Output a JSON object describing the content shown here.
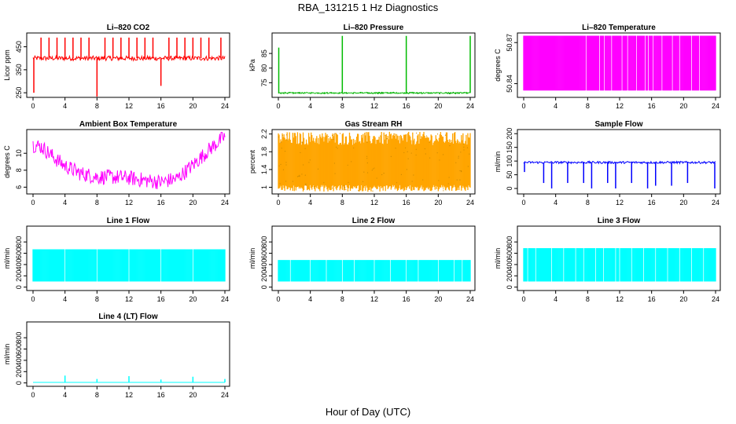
{
  "figure": {
    "title": "RBA_131215  1 Hz Diagnostics",
    "xlabel": "Hour of Day (UTC)"
  },
  "chart_data": [
    {
      "id": "co2",
      "type": "line",
      "title": "Li–820 CO2",
      "ylabel": "Licor ppm",
      "color": "#ff0000",
      "xlim": [
        0,
        24
      ],
      "ylim": [
        230,
        510
      ],
      "x_ticks": [
        0,
        4,
        8,
        12,
        16,
        20,
        24
      ],
      "y_ticks": [
        250,
        350,
        450
      ],
      "pattern": {
        "baseline": 400,
        "noise": 10,
        "spikes_up_at": [
          1.0,
          2.0,
          3.0,
          4.0,
          5.0,
          6.0,
          7.0,
          9.0,
          10.0,
          11.0,
          12.0,
          13.0,
          14.0,
          15.0,
          17.0,
          18.0,
          19.0,
          20.0,
          21.0,
          22.0,
          23.5
        ],
        "spike_up_to": 490,
        "spikes_down": [
          [
            0.1,
            250
          ],
          [
            8.0,
            230
          ],
          [
            16.0,
            280
          ]
        ]
      }
    },
    {
      "id": "pressure",
      "type": "line",
      "title": "Li–820 Pressure",
      "ylabel": "kPa",
      "color": "#00bb00",
      "xlim": [
        0,
        24
      ],
      "ylim": [
        70,
        92
      ],
      "x_ticks": [
        0,
        4,
        8,
        12,
        16,
        20,
        24
      ],
      "y_ticks": [
        75,
        80,
        85
      ],
      "pattern": {
        "baseline": 71.5,
        "noise": 0.2,
        "spikes_up": [
          [
            0.05,
            87
          ],
          [
            8.0,
            91
          ],
          [
            16.0,
            91
          ],
          [
            24.0,
            91
          ]
        ]
      }
    },
    {
      "id": "licor_temp",
      "type": "area",
      "title": "Li–820 Temperature",
      "ylabel": "degrees C",
      "color": "#ff00ff",
      "xlim": [
        0,
        24
      ],
      "ylim": [
        50.83,
        50.877
      ],
      "x_ticks": [
        0,
        4,
        8,
        12,
        16,
        20,
        24
      ],
      "y_ticks": [
        50.84,
        50.87
      ],
      "pattern": {
        "low": 50.835,
        "high": 50.875,
        "gaps": [
          7.8,
          9.5,
          10.1,
          11.0,
          12.3,
          13.0,
          14.1,
          15.2,
          15.6,
          16.2,
          17.3,
          18.6,
          19.5,
          21.0,
          22.0
        ]
      }
    },
    {
      "id": "box_temp",
      "type": "line",
      "title": "Ambient Box Temperature",
      "ylabel": "degrees C",
      "color": "#ff00ff",
      "xlim": [
        0,
        24
      ],
      "ylim": [
        5.2,
        12.8
      ],
      "x_ticks": [
        0,
        4,
        8,
        12,
        16,
        20,
        24
      ],
      "y_ticks": [
        6,
        8,
        10
      ],
      "profile": [
        [
          0,
          11.0
        ],
        [
          1,
          10.8
        ],
        [
          2,
          10.0
        ],
        [
          3,
          9.2
        ],
        [
          4,
          8.5
        ],
        [
          6,
          7.6
        ],
        [
          8,
          7.2
        ],
        [
          10,
          7.2
        ],
        [
          12,
          7.1
        ],
        [
          14,
          6.8
        ],
        [
          16,
          6.6
        ],
        [
          18,
          7.0
        ],
        [
          20,
          8.6
        ],
        [
          22,
          10.4
        ],
        [
          24,
          12.0
        ]
      ],
      "noise": 0.9
    },
    {
      "id": "rh",
      "type": "area",
      "title": "Gas Stream RH",
      "ylabel": "percent",
      "color": "#ffa500",
      "xlim": [
        0,
        24
      ],
      "ylim": [
        0.85,
        2.3
      ],
      "x_ticks": [
        0,
        4,
        8,
        12,
        16,
        20,
        24
      ],
      "y_ticks": [
        1.0,
        1.4,
        1.8,
        2.2
      ],
      "pattern": {
        "low": 1.05,
        "high": 1.95,
        "min": 0.9,
        "max": 2.25
      }
    },
    {
      "id": "sample_flow",
      "type": "line",
      "title": "Sample Flow",
      "ylabel": "ml/min",
      "color": "#0000ff",
      "xlim": [
        0,
        24
      ],
      "ylim": [
        -20,
        215
      ],
      "x_ticks": [
        0,
        4,
        8,
        12,
        16,
        20,
        24
      ],
      "y_ticks": [
        0,
        50,
        100,
        150,
        200
      ],
      "pattern": {
        "baseline": 95,
        "noise": 4,
        "dips": [
          [
            0.1,
            60
          ],
          [
            2.5,
            20
          ],
          [
            3.5,
            0
          ],
          [
            5.5,
            20
          ],
          [
            7.5,
            20
          ],
          [
            8.5,
            0
          ],
          [
            10.5,
            20
          ],
          [
            11.5,
            0
          ],
          [
            13.5,
            20
          ],
          [
            15.5,
            0
          ],
          [
            16.5,
            10
          ],
          [
            18.5,
            10
          ],
          [
            20.5,
            20
          ],
          [
            23.9,
            0
          ]
        ]
      }
    },
    {
      "id": "line1",
      "type": "area",
      "title": "Line 1 Flow",
      "ylabel": "ml/min",
      "color": "#00ffff",
      "xlim": [
        0,
        24
      ],
      "ylim": [
        -60,
        1080
      ],
      "x_ticks": [
        0,
        4,
        8,
        12,
        16,
        20,
        24
      ],
      "y_ticks": [
        0,
        200,
        400,
        600,
        800
      ],
      "pattern": {
        "low": 100,
        "high": 670,
        "gaps": [
          4.0,
          8.0,
          12.0,
          16.0,
          20.0
        ]
      }
    },
    {
      "id": "line2",
      "type": "area",
      "title": "Line 2 Flow",
      "ylabel": "ml/min",
      "color": "#00ffff",
      "xlim": [
        0,
        24
      ],
      "ylim": [
        -60,
        1080
      ],
      "x_ticks": [
        0,
        4,
        8,
        12,
        16,
        20,
        24
      ],
      "y_ticks": [
        0,
        200,
        400,
        600,
        800
      ],
      "pattern": {
        "low": 100,
        "high": 480,
        "gaps": [
          1.5,
          4.0,
          6.0,
          8.0,
          9.5,
          12.0,
          14.0,
          16.0,
          17.5,
          20.0,
          22.0,
          23.0
        ]
      }
    },
    {
      "id": "line3",
      "type": "area",
      "title": "Line 3 Flow",
      "ylabel": "ml/min",
      "color": "#00ffff",
      "xlim": [
        0,
        24
      ],
      "ylim": [
        -60,
        1080
      ],
      "x_ticks": [
        0,
        4,
        8,
        12,
        16,
        20,
        24
      ],
      "y_ticks": [
        0,
        200,
        400,
        600,
        800
      ],
      "pattern": {
        "low": 100,
        "high": 690,
        "gaps": [
          0.5,
          1.5,
          3.5,
          5.0,
          6.5,
          7.5,
          9.0,
          10.0,
          11.5,
          12.0,
          13.5,
          15.0,
          16.5,
          18.0,
          19.5,
          21.0,
          22.5
        ]
      }
    },
    {
      "id": "line4",
      "type": "line",
      "title": "Line 4 (LT) Flow",
      "ylabel": "ml/min",
      "color": "#00ffff",
      "xlim": [
        0,
        24
      ],
      "ylim": [
        -60,
        1080
      ],
      "x_ticks": [
        0,
        4,
        8,
        12,
        16,
        20,
        24
      ],
      "y_ticks": [
        0,
        200,
        400,
        600,
        800
      ],
      "pattern": {
        "baseline": 10,
        "spikes_up": [
          [
            4.0,
            130
          ],
          [
            8.0,
            70
          ],
          [
            12.0,
            120
          ],
          [
            16.0,
            60
          ],
          [
            20.0,
            110
          ],
          [
            24.0,
            70
          ]
        ]
      }
    }
  ]
}
